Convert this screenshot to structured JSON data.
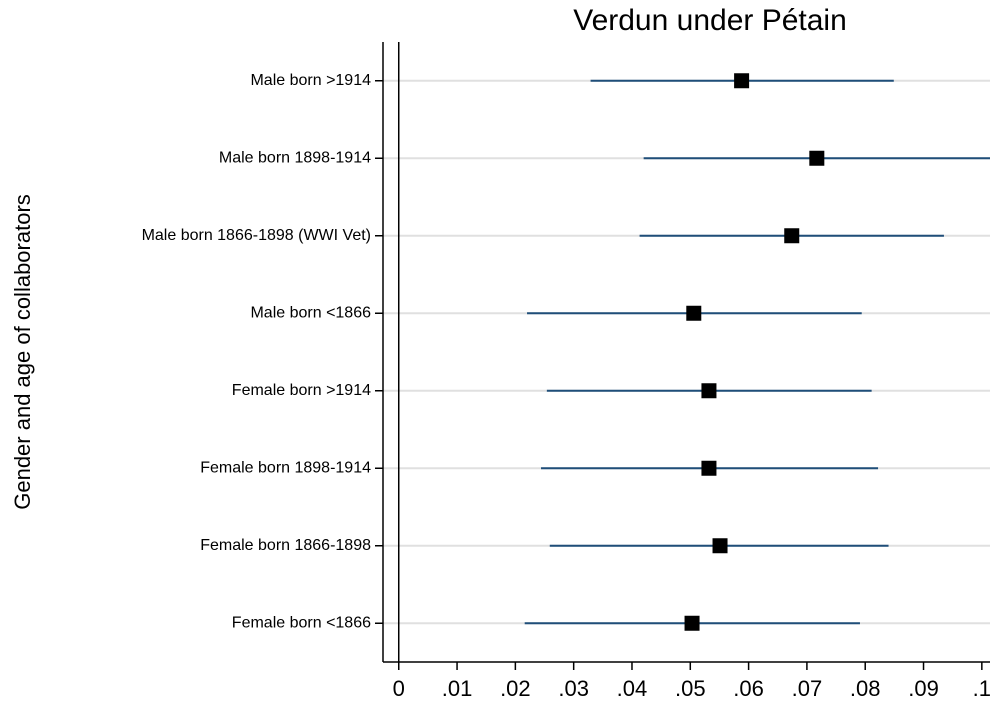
{
  "chart_data": {
    "type": "dot-errorbar",
    "title": "Verdun under Pétain",
    "ylabel": "Gender and age of collaborators",
    "categories": [
      "Male born >1914",
      "Male born 1898-1914",
      "Male born 1866-1898 (WWI Vet)",
      "Male born <1866",
      "Female born >1914",
      "Female born 1898-1914",
      "Female born 1866-1898",
      "Female born <1866"
    ],
    "values": [
      0.0588,
      0.0717,
      0.0674,
      0.0506,
      0.0532,
      0.0532,
      0.0551,
      0.0503
    ],
    "lower": [
      0.0329,
      0.042,
      0.0413,
      0.022,
      0.0254,
      0.0244,
      0.0259,
      0.0216
    ],
    "upper": [
      0.0849,
      0.1014,
      0.0935,
      0.0794,
      0.0811,
      0.0822,
      0.084,
      0.0791
    ],
    "color": "#000000",
    "ci_color": "#1f4e79",
    "xlim": [
      -0.0027,
      0.1014
    ],
    "xticks": [
      0,
      {
        "value": 0.01,
        "label": ".01"
      },
      {
        "value": 0.02,
        "label": ".02"
      },
      {
        "value": 0.03,
        "label": ".03"
      },
      {
        "value": 0.04,
        "label": ".04"
      },
      {
        "value": 0.05,
        "label": ".05"
      },
      {
        "value": 0.06,
        "label": ".06"
      },
      {
        "value": 0.07,
        "label": ".07"
      },
      {
        "value": 0.08,
        "label": ".08"
      },
      {
        "value": 0.09,
        "label": ".09"
      },
      {
        "value": 0.1,
        "label": ".1"
      }
    ],
    "grid": true
  }
}
